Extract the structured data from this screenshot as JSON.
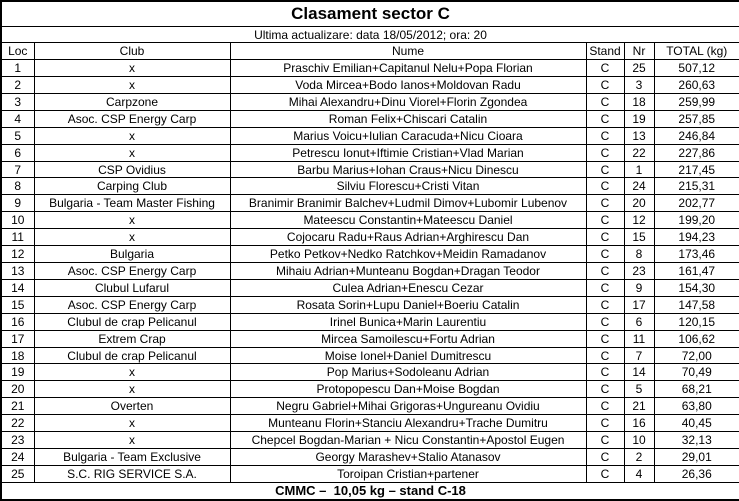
{
  "title": "Clasament sector C",
  "subtitle": "Ultima actualizare: data 18/05/2012; ora: 20",
  "footer": "CMMC –  10,05 kg – stand C-18",
  "columns": [
    "Loc",
    "Club",
    "Nume",
    "Stand",
    "Nr",
    "TOTAL (kg)"
  ],
  "rows": [
    [
      "1",
      "x",
      "Praschiv Emilian+Capitanul Nelu+Popa Florian",
      "C",
      "25",
      "507,12"
    ],
    [
      "2",
      "x",
      "Voda Mircea+Bodo Ianos+Moldovan Radu",
      "C",
      "3",
      "260,63"
    ],
    [
      "3",
      "Carpzone",
      "Mihai Alexandru+Dinu Viorel+Florin Zgondea",
      "C",
      "18",
      "259,99"
    ],
    [
      "4",
      "Asoc. CSP Energy Carp",
      "Roman Felix+Chiscari Catalin",
      "C",
      "19",
      "257,85"
    ],
    [
      "5",
      "x",
      "Marius Voicu+Iulian Caracuda+Nicu Cioara",
      "C",
      "13",
      "246,84"
    ],
    [
      "6",
      "x",
      "Petrescu Ionut+Iftimie Cristian+Vlad Marian",
      "C",
      "22",
      "227,86"
    ],
    [
      "7",
      "CSP Ovidius",
      "Barbu Marius+Iohan Craus+Nicu Dinescu",
      "C",
      "1",
      "217,45"
    ],
    [
      "8",
      "Carping Club",
      "Silviu Florescu+Cristi Vitan",
      "C",
      "24",
      "215,31"
    ],
    [
      "9",
      "Bulgaria - Team Master Fishing",
      "Branimir Branimir Balchev+Ludmil Dimov+Lubomir Lubenov",
      "C",
      "20",
      "202,77"
    ],
    [
      "10",
      "x",
      "Mateescu Constantin+Mateescu Daniel",
      "C",
      "12",
      "199,20"
    ],
    [
      "11",
      "x",
      "Cojocaru Radu+Raus Adrian+Arghirescu Dan",
      "C",
      "15",
      "194,23"
    ],
    [
      "12",
      "Bulgaria",
      "Petko Petkov+Nedko Ratchkov+Meidin Ramadanov",
      "C",
      "8",
      "173,46"
    ],
    [
      "13",
      "Asoc. CSP Energy Carp",
      "Mihaiu Adrian+Munteanu Bogdan+Dragan Teodor",
      "C",
      "23",
      "161,47"
    ],
    [
      "14",
      "Clubul Lufarul",
      "Culea Adrian+Enescu Cezar",
      "C",
      "9",
      "154,30"
    ],
    [
      "15",
      "Asoc. CSP Energy Carp",
      "Rosata Sorin+Lupu Daniel+Boeriu Catalin",
      "C",
      "17",
      "147,58"
    ],
    [
      "16",
      "Clubul de crap Pelicanul",
      "Irinel Bunica+Marin Laurentiu",
      "C",
      "6",
      "120,15"
    ],
    [
      "17",
      "Extrem Crap",
      "Mircea Samoilescu+Fortu Adrian",
      "C",
      "11",
      "106,62"
    ],
    [
      "18",
      "Clubul de crap Pelicanul",
      "Moise Ionel+Daniel Dumitrescu",
      "C",
      "7",
      "72,00"
    ],
    [
      "19",
      "x",
      "Pop Marius+Sodoleanu Adrian",
      "C",
      "14",
      "70,49"
    ],
    [
      "20",
      "x",
      "Protopopescu Dan+Moise Bogdan",
      "C",
      "5",
      "68,21"
    ],
    [
      "21",
      "Overten",
      "Negru Gabriel+Mihai Grigoras+Ungureanu Ovidiu",
      "C",
      "21",
      "63,80"
    ],
    [
      "22",
      "x",
      "Munteanu Florin+Stanciu Alexandru+Trache Dumitru",
      "C",
      "16",
      "40,45"
    ],
    [
      "23",
      "x",
      "Chepcel Bogdan-Marian + Nicu Constantin+Apostol Eugen",
      "C",
      "10",
      "32,13"
    ],
    [
      "24",
      "Bulgaria - Team Exclusive",
      "Georgy Marashev+Stalio Atanasov",
      "C",
      "2",
      "29,01"
    ],
    [
      "25",
      "S.C. RIG SERVICE S.A.",
      "Toroipan Cristian+partener",
      "C",
      "4",
      "26,36"
    ]
  ]
}
